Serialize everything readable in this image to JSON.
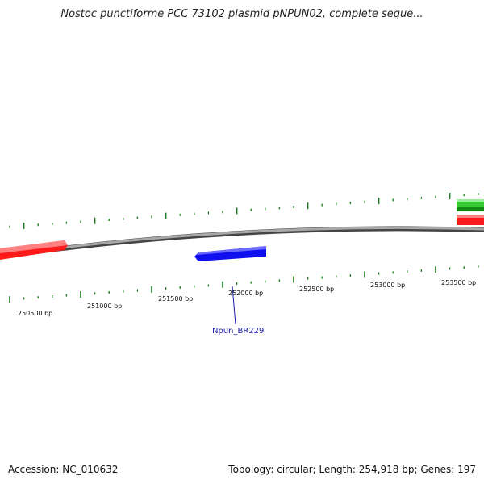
{
  "title": "Nostoc punctiforme PCC 73102 plasmid pNPUN02, complete seque...",
  "footer": {
    "accession": "Accession: NC_010632",
    "summary": "Topology: circular; Length: 254,918 bp; Genes: 197"
  },
  "scale": {
    "unit": "bp",
    "labels": [
      "250500 bp",
      "251000 bp",
      "251500 bp",
      "252000 bp",
      "252500 bp",
      "253000 bp",
      "253500 bp"
    ]
  },
  "features": [
    {
      "name": "forward-red-feature-left",
      "strand": "forward",
      "color": "#ff0000"
    },
    {
      "name": "forward-red-feature-right",
      "strand": "forward",
      "color": "#ff0000"
    },
    {
      "name": "forward-green-feature-1",
      "strand": "forward",
      "color": "#33cc33"
    },
    {
      "name": "forward-green-feature-2",
      "strand": "forward",
      "color": "#118811"
    },
    {
      "name": "reverse-blue-feature",
      "strand": "reverse",
      "color": "#0000ee",
      "label": "Npun_BR229"
    }
  ],
  "colors": {
    "backbone": "#7a7a7a",
    "tick": "#1a7a1a",
    "label_line": "#1a1aa8"
  }
}
